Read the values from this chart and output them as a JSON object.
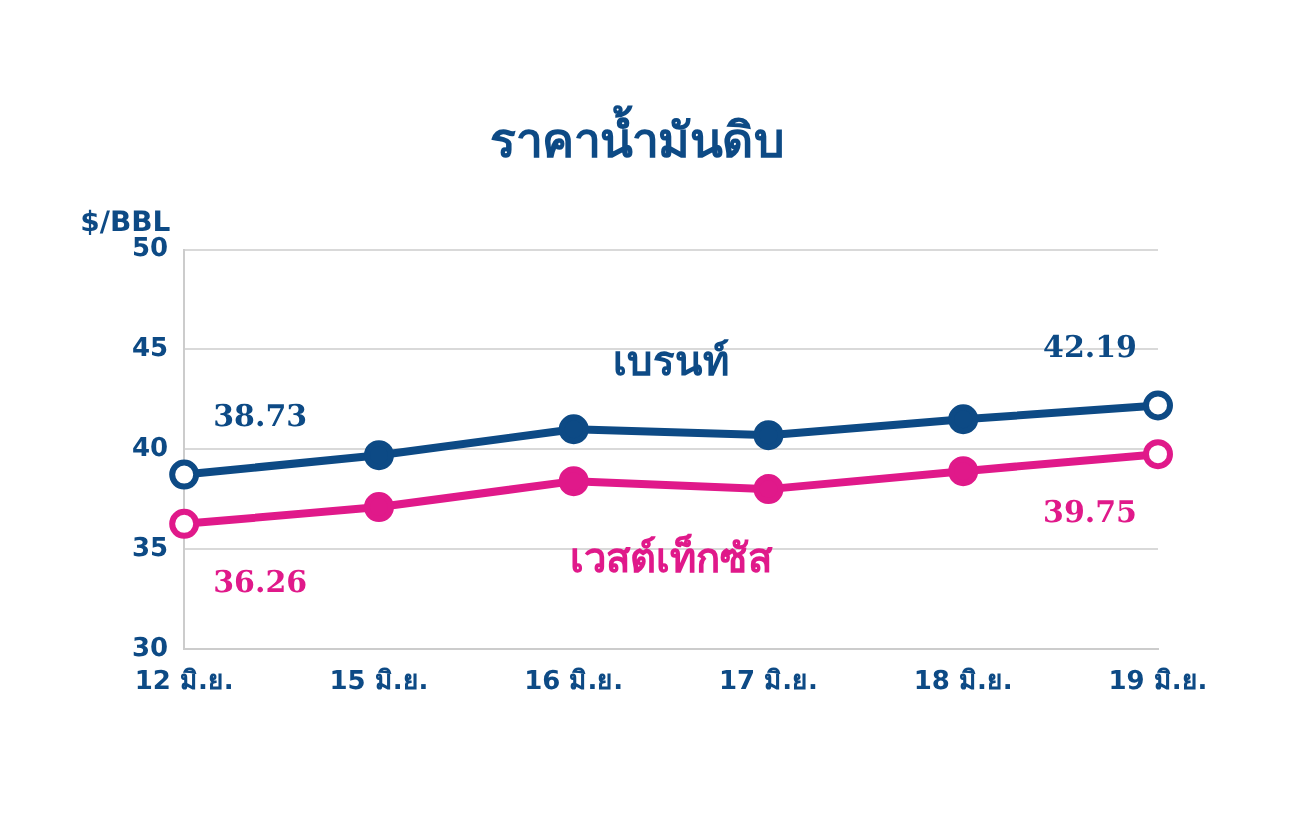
{
  "chart_data": {
    "type": "line",
    "title": "ราคาน้ำมันดิบ",
    "ylabel": "$/BBL",
    "categories": [
      "12 มิ.ย.",
      "15 มิ.ย.",
      "16 มิ.ย.",
      "17 มิ.ย.",
      "18 มิ.ย.",
      "19 มิ.ย."
    ],
    "series": [
      {
        "name": "เบรนท์",
        "color": "#0d4a85",
        "values": [
          38.73,
          39.7,
          41.0,
          40.7,
          41.5,
          42.19
        ],
        "value_labels": [
          "38.73",
          null,
          null,
          null,
          null,
          "42.19"
        ]
      },
      {
        "name": "เวสต์เท็กซัส",
        "color": "#e0198a",
        "values": [
          36.26,
          37.1,
          38.4,
          38.0,
          38.9,
          39.75
        ],
        "value_labels": [
          "36.26",
          null,
          null,
          null,
          null,
          "39.75"
        ]
      }
    ],
    "ylim": [
      30,
      50
    ],
    "yticks": [
      30,
      35,
      40,
      45,
      50
    ],
    "grid": "y",
    "legend": false,
    "marker": "circle",
    "line_style": "solid"
  }
}
